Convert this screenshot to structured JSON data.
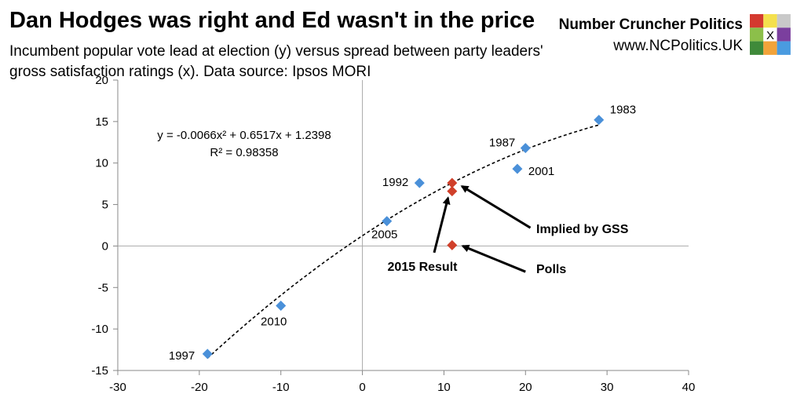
{
  "header": {
    "title": "Dan Hodges was right and Ed wasn't in the price",
    "subtitle": "Incumbent popular vote lead at election (y) versus spread between party leaders' gross satisfaction ratings (x). Data source: Ipsos MORI"
  },
  "brand": {
    "name": "Number Cruncher Politics",
    "url": "www.NCPolitics.UK",
    "logo_mark": "X",
    "logo_colors": [
      "#d43a2f",
      "#f4e04d",
      "#c9c9c9",
      "#8cbf4a",
      "#ffffff",
      "#7b3f9e",
      "#3f8a3a",
      "#f2a33a",
      "#4a9be0"
    ]
  },
  "chart_data": {
    "type": "scatter",
    "xlim": [
      -30,
      40
    ],
    "ylim": [
      -15,
      20
    ],
    "x_ticks": [
      "-30",
      "-20",
      "-10",
      "0",
      "10",
      "20",
      "30",
      "40"
    ],
    "y_ticks": [
      "20",
      "15",
      "10",
      "5",
      "0",
      "-5",
      "-10",
      "-15"
    ],
    "grid": false,
    "points": [
      {
        "label": "1983",
        "x": 29,
        "y": 15.2,
        "color": "#4a90d9"
      },
      {
        "label": "1987",
        "x": 20,
        "y": 11.8,
        "color": "#4a90d9"
      },
      {
        "label": "2001",
        "x": 19,
        "y": 9.3,
        "color": "#4a90d9"
      },
      {
        "label": "1992",
        "x": 7,
        "y": 7.6,
        "color": "#4a90d9"
      },
      {
        "label": "2005",
        "x": 3,
        "y": 3.0,
        "color": "#4a90d9"
      },
      {
        "label": "2010",
        "x": -10,
        "y": -7.2,
        "color": "#4a90d9"
      },
      {
        "label": "1997",
        "x": -19,
        "y": -13.0,
        "color": "#4a90d9"
      }
    ],
    "highlight_points": [
      {
        "name": "implied-by-gss",
        "x": 11,
        "y": 7.6,
        "color": "#d0402b"
      },
      {
        "name": "2015-result",
        "x": 11,
        "y": 6.6,
        "color": "#d0402b"
      },
      {
        "name": "polls",
        "x": 11,
        "y": 0.1,
        "color": "#d0402b"
      }
    ],
    "trendline": {
      "a": -0.0066,
      "b": 0.6517,
      "c": 1.2398,
      "x_range": [
        -19,
        29
      ],
      "equation": "y = -0.0066x² + 0.6517x + 1.2398",
      "r_squared": "R² = 0.98358"
    },
    "annotations": [
      {
        "text": "Implied by GSS",
        "from": [
          20.6,
          2.2
        ],
        "to": [
          12.2,
          7.2
        ]
      },
      {
        "text": "2015 Result",
        "from": [
          8.8,
          -0.8
        ],
        "to": [
          10.5,
          5.8
        ]
      },
      {
        "text": "Polls",
        "from": [
          20.0,
          -3.1
        ],
        "to": [
          12.3,
          0
        ]
      }
    ]
  }
}
